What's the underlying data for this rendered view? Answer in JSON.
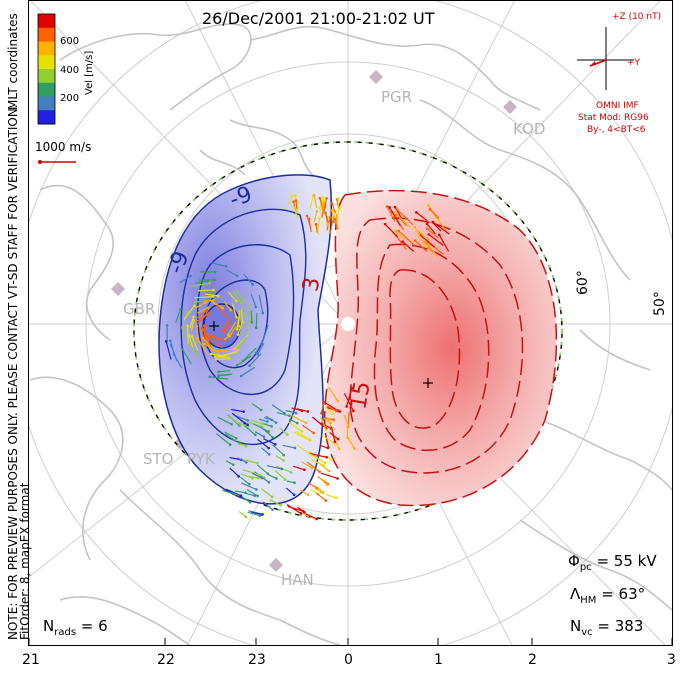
{
  "title": "26/Dec/2001 21:00-21:02 UT",
  "side_text": {
    "coordinates": "MLT coordinates",
    "note": "NOTE: FOR PREVIEW PURPOSES ONLY. PLEASE CONTACT VT-SD STAFF FOR VERIFICATION.",
    "fit": "FitOrder: 8,  mapEX format"
  },
  "colorbar": {
    "label": "Vel [m/s]",
    "ticks": [
      "600",
      "400",
      "200"
    ],
    "colors": [
      "#e00000",
      "#ff6000",
      "#ffb000",
      "#e8e000",
      "#90d030",
      "#30a060",
      "#4080c0",
      "#2020e0"
    ]
  },
  "scale": {
    "label": "1000 m/s",
    "color": "#d40000"
  },
  "imf": {
    "z_label": "+Z (10 nT)",
    "y_label": "+Y",
    "omni": "OMNI IMF",
    "model": "Stat Mod: RG96",
    "condition": "By-, 4<BT<6",
    "color": "#d40000"
  },
  "stations": [
    "PGR",
    "KOD",
    "GBR",
    "STO",
    "PYK",
    "HAN"
  ],
  "latitude_labels": [
    "60°",
    "50°"
  ],
  "contour_labels": [
    "-9",
    "-9",
    "3",
    "15"
  ],
  "stats": {
    "phi_symbol": "Φ",
    "phi_sub": "pc",
    "phi_value": " = 55 kV",
    "lambda_symbol": "Λ",
    "lambda_sub": "HM",
    "lambda_value": " = 63°",
    "nvc_symbol": "N",
    "nvc_sub": "vc",
    "nvc_value": " = 383",
    "nrads_symbol": "N",
    "nrads_sub": "rads",
    "nrads_value": " = 6"
  },
  "mlt_axis": [
    "21",
    "22",
    "23",
    "0",
    "1",
    "2",
    "3"
  ]
}
